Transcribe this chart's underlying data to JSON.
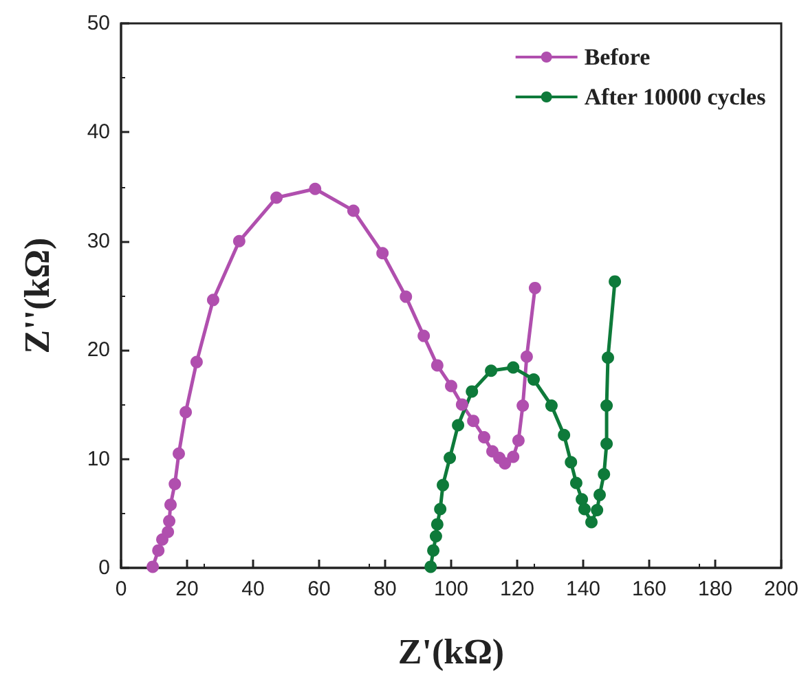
{
  "chart_data": {
    "type": "line",
    "xlabel": "Z'(kΩ)",
    "ylabel": "Z''(kΩ)",
    "xlim": [
      0,
      200
    ],
    "xticks": [
      0,
      20,
      40,
      60,
      80,
      100,
      120,
      140,
      160,
      180,
      200
    ],
    "ylim": [
      0,
      50
    ],
    "yticks": [
      0,
      10,
      20,
      30,
      40,
      50
    ],
    "grid": false,
    "legend": "top right",
    "marker": "circle",
    "line_style": "solid",
    "series": [
      {
        "name": "Before",
        "color": "#b04fae",
        "x": [
          9.6,
          11.3,
          12.5,
          14.2,
          14.6,
          15,
          16.3,
          17.5,
          19.6,
          22.9,
          27.9,
          35.8,
          47.1,
          58.8,
          70.4,
          79.2,
          86.3,
          91.7,
          95.8,
          100,
          103.3,
          106.7,
          110,
          112.5,
          114.6,
          116.3,
          118.8,
          120.4,
          121.7,
          122.9,
          125.4
        ],
        "values": [
          0.1,
          1.6,
          2.6,
          3.3,
          4.3,
          5.8,
          7.7,
          10.5,
          14.3,
          18.9,
          24.6,
          30,
          34,
          34.8,
          32.8,
          28.9,
          24.9,
          21.3,
          18.6,
          16.7,
          15,
          13.5,
          12,
          10.7,
          10.1,
          9.6,
          10.2,
          11.7,
          14.9,
          19.4,
          25.7
        ]
      },
      {
        "name": "After 10000 cycles",
        "color": "#0e7a3a",
        "x": [
          93.8,
          94.6,
          95.4,
          95.8,
          96.7,
          97.5,
          99.6,
          102.1,
          106.3,
          112.1,
          118.8,
          125,
          130.4,
          134.2,
          136.3,
          137.9,
          139.6,
          140.4,
          142.5,
          144.2,
          145,
          146.3,
          147.1,
          147.1,
          147.5,
          149.6
        ],
        "values": [
          0.1,
          1.6,
          2.9,
          4,
          5.4,
          7.6,
          10.1,
          13.1,
          16.2,
          18.1,
          18.4,
          17.3,
          14.9,
          12.2,
          9.7,
          7.8,
          6.3,
          5.4,
          4.2,
          5.3,
          6.7,
          8.6,
          11.4,
          14.9,
          19.3,
          26.3
        ]
      }
    ]
  }
}
